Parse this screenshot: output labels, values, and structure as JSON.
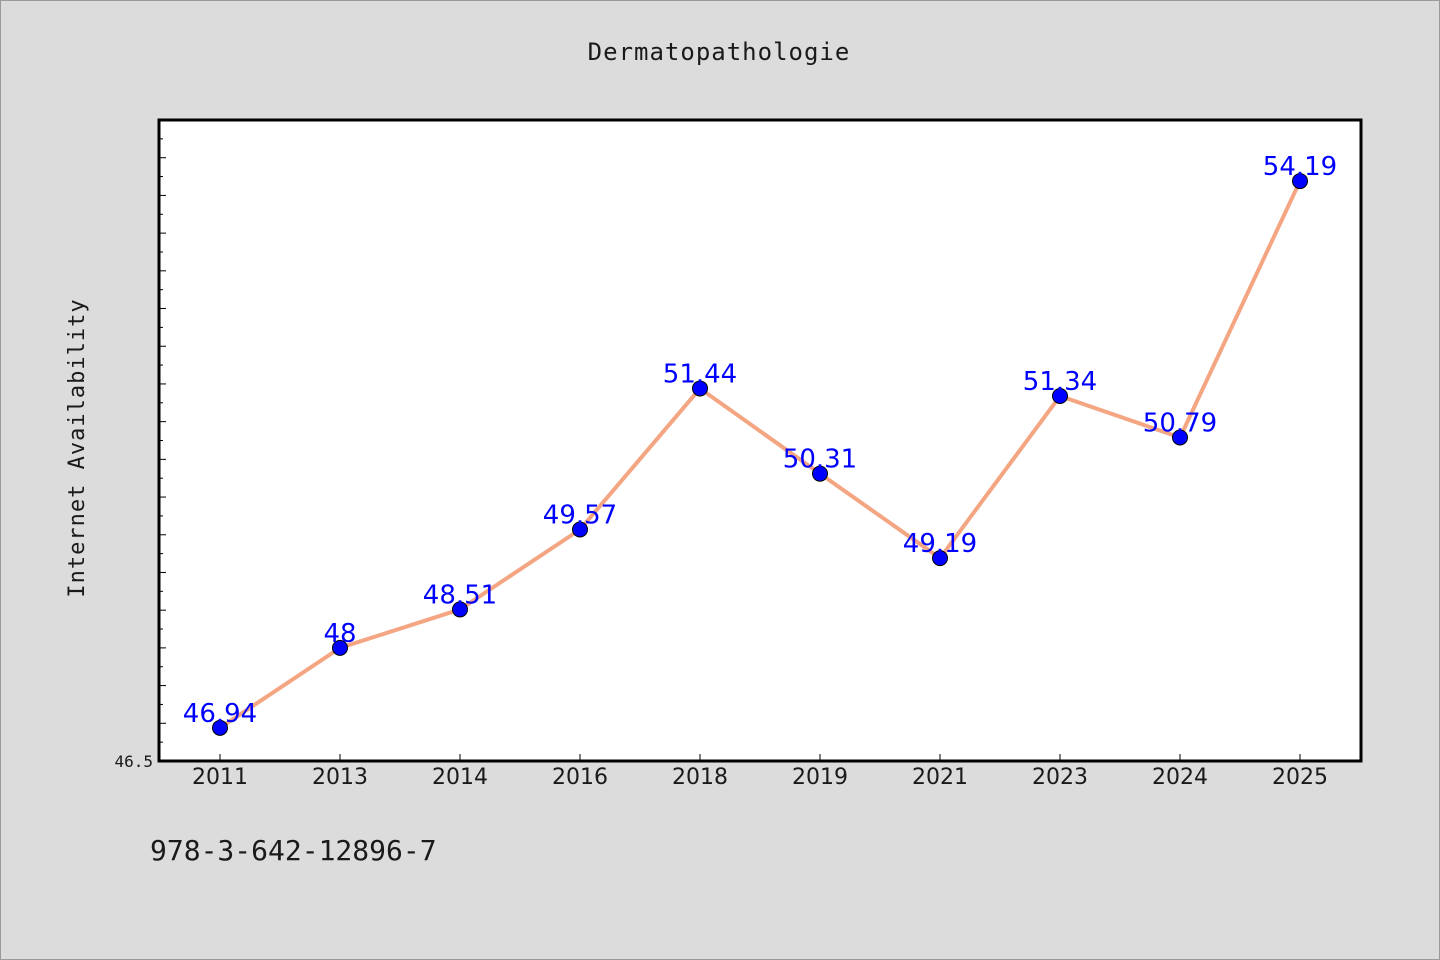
{
  "chart_data": {
    "type": "line",
    "title": "Dermatopathologie",
    "xlabel": "",
    "ylabel": "Internet Availability",
    "categories": [
      "2011",
      "2013",
      "2014",
      "2016",
      "2018",
      "2019",
      "2021",
      "2023",
      "2024",
      "2025"
    ],
    "series": [
      {
        "values": [
          46.94,
          48,
          48.51,
          49.57,
          51.44,
          50.31,
          49.19,
          51.34,
          50.79,
          54.19
        ],
        "labels": [
          "46.94",
          "48",
          "48.51",
          "49.57",
          "51.44",
          "50.31",
          "49.19",
          "51.34",
          "50.79",
          "54.19"
        ],
        "line_color": "#f4a582",
        "marker_color": "#0000ff"
      }
    ],
    "ylim": [
      46.5,
      55
    ],
    "yticks_labeled": [
      "46.5"
    ],
    "grid": false,
    "legend": "none"
  },
  "footnote": "978-3-642-12896-7",
  "colors": {
    "background": "#dcdcdc",
    "plot_background": "#ffffff",
    "line": "#f4a582",
    "marker": "#0000ff",
    "data_label": "#0000ff"
  }
}
